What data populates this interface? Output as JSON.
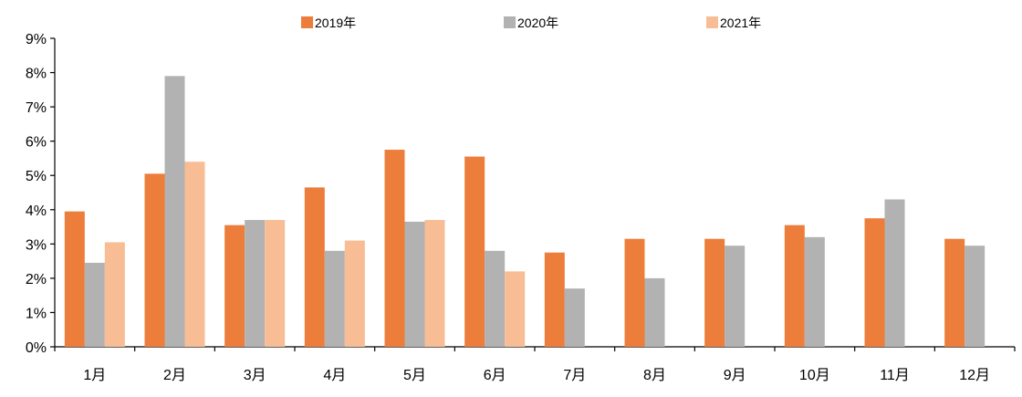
{
  "chart_data": {
    "type": "bar",
    "categories": [
      "1月",
      "2月",
      "3月",
      "4月",
      "5月",
      "6月",
      "7月",
      "8月",
      "9月",
      "10月",
      "11月",
      "12月"
    ],
    "series": [
      {
        "name": "2019年",
        "color": "#ED7D3B",
        "values": [
          3.95,
          5.05,
          3.55,
          4.65,
          5.75,
          5.55,
          2.75,
          3.15,
          3.15,
          3.55,
          3.75,
          3.15
        ]
      },
      {
        "name": "2020年",
        "color": "#B2B2B2",
        "values": [
          2.45,
          7.9,
          3.7,
          2.8,
          3.65,
          2.8,
          1.7,
          2.0,
          2.95,
          3.2,
          4.3,
          2.95
        ]
      },
      {
        "name": "2021年",
        "color": "#F8BD94",
        "values": [
          3.05,
          5.4,
          3.7,
          3.1,
          3.7,
          2.2,
          null,
          null,
          null,
          null,
          null,
          null
        ]
      }
    ],
    "yticks": [
      "0%",
      "1%",
      "2%",
      "3%",
      "4%",
      "5%",
      "6%",
      "7%",
      "8%",
      "9%"
    ],
    "ylim": [
      0,
      9
    ],
    "grid": false,
    "legend_position": "top"
  }
}
